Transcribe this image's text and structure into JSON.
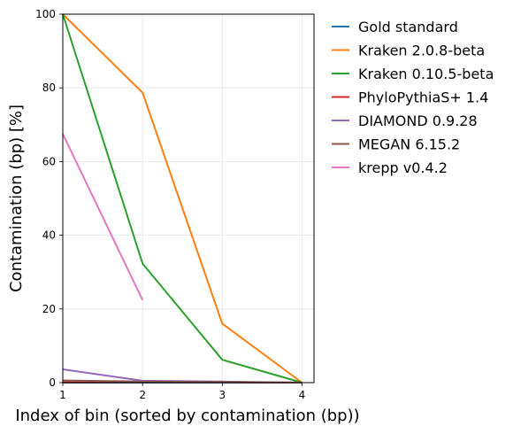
{
  "chart_data": {
    "type": "line",
    "xlabel": "Index of bin (sorted by contamination (bp))",
    "ylabel": "Contamination (bp) [%]",
    "xlim": [
      1,
      4.15
    ],
    "ylim": [
      0,
      100
    ],
    "x_ticks": [
      1,
      2,
      3,
      4
    ],
    "y_ticks": [
      0,
      20,
      40,
      60,
      80,
      100
    ],
    "grid": true,
    "legend_position": "outside-right",
    "series": [
      {
        "name": "Gold standard",
        "color": "#1f77b4",
        "x": [
          1,
          2,
          3,
          4
        ],
        "values": [
          0,
          0,
          0,
          0
        ]
      },
      {
        "name": "Kraken 2.0.8-beta",
        "color": "#ff7f0e",
        "x": [
          1,
          2,
          3,
          4
        ],
        "values": [
          100,
          78.7,
          16.0,
          0
        ]
      },
      {
        "name": "Kraken 0.10.5-beta",
        "color": "#2ca02c",
        "x": [
          1,
          2,
          3,
          4
        ],
        "values": [
          100,
          32.3,
          6.2,
          0
        ]
      },
      {
        "name": "PhyloPythiaS+ 1.4",
        "color": "#d62728",
        "x": [
          1,
          2,
          3,
          4
        ],
        "values": [
          0.1,
          0.1,
          0.1,
          0
        ]
      },
      {
        "name": "DIAMOND 0.9.28",
        "color": "#9467bd",
        "x": [
          1,
          2,
          3,
          4
        ],
        "values": [
          3.6,
          0.5,
          0.3,
          0
        ]
      },
      {
        "name": "MEGAN 6.15.2",
        "color": "#8c564b",
        "x": [
          1,
          2,
          3,
          4
        ],
        "values": [
          0.6,
          0.3,
          0.2,
          0
        ]
      },
      {
        "name": "krepp v0.4.2",
        "color": "#e377c2",
        "x": [
          1,
          2
        ],
        "values": [
          67.5,
          22.4
        ]
      }
    ]
  }
}
